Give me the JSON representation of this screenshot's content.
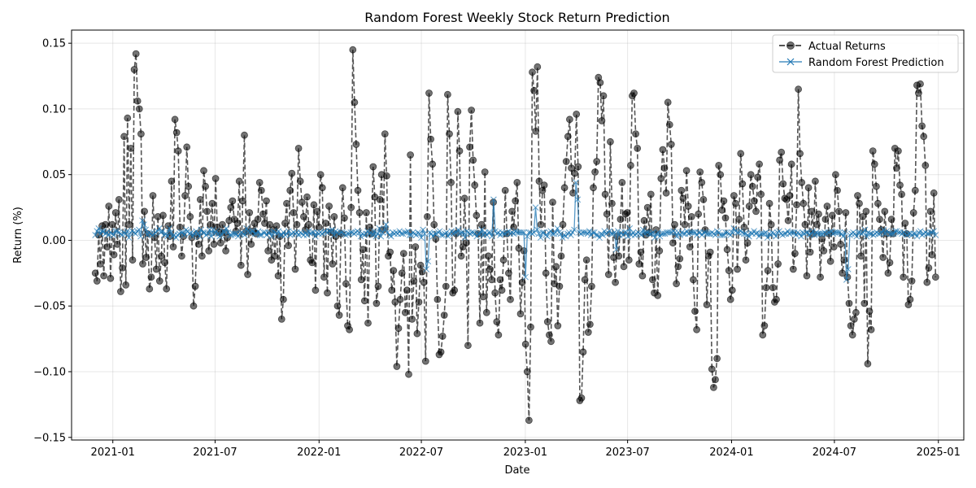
{
  "chart_data": {
    "type": "line",
    "title": "Random Forest Weekly Stock Return Prediction",
    "xlabel": "Date",
    "ylabel": "Return (%)",
    "x_type": "date",
    "xlim": [
      "2020-10-20",
      "2025-02-15"
    ],
    "ylim": [
      -0.152,
      0.16
    ],
    "x_ticks": [
      "2021-01-01",
      "2021-07-01",
      "2022-01-01",
      "2022-07-01",
      "2023-01-01",
      "2023-07-01",
      "2024-01-01",
      "2024-07-01",
      "2025-01-01"
    ],
    "x_tick_labels": [
      "2021-01",
      "2021-07",
      "2022-01",
      "2022-07",
      "2023-01",
      "2023-07",
      "2024-01",
      "2024-07",
      "2025-01"
    ],
    "y_ticks": [
      -0.15,
      -0.1,
      -0.05,
      0.0,
      0.05,
      0.1,
      0.15
    ],
    "y_tick_labels": [
      "−0.15",
      "−0.10",
      "−0.05",
      "0.00",
      "0.05",
      "0.10",
      "0.15"
    ],
    "grid": true,
    "legend_position": "top-right",
    "series": [
      {
        "name": "Actual Returns",
        "color": "#555555",
        "style": "dashed",
        "marker": "circle",
        "sampling": "daily",
        "start": "2020-12-01",
        "end": "2024-12-27",
        "values": [
          -0.025,
          -0.031,
          0.004,
          -0.018,
          0.011,
          -0.027,
          0.012,
          -0.005,
          0.026,
          -0.029,
          0.012,
          -0.011,
          0.021,
          -0.003,
          0.031,
          -0.039,
          -0.021,
          0.079,
          -0.034,
          0.093,
          0.012,
          0.07,
          -0.015,
          0.13,
          0.142,
          0.106,
          0.1,
          0.081,
          -0.018,
          0.022,
          -0.013,
          0.005,
          -0.037,
          -0.028,
          0.034,
          0.002,
          -0.022,
          0.018,
          -0.031,
          -0.012,
          0.019,
          -0.017,
          -0.037,
          0.011,
          0.003,
          0.045,
          -0.005,
          0.092,
          0.082,
          0.068,
          0.01,
          -0.012,
          0.003,
          0.034,
          0.071,
          0.041,
          0.018,
          0.002,
          -0.05,
          -0.035,
          0.005,
          -0.003,
          0.031,
          -0.012,
          0.053,
          0.041,
          0.022,
          -0.008,
          0.012,
          0.028,
          -0.003,
          0.047,
          0.01,
          0.006,
          -0.002,
          0.012,
          0.006,
          -0.008,
          0.002,
          0.015,
          0.025,
          0.03,
          0.016,
          0.007,
          0.013,
          0.045,
          -0.019,
          0.03,
          0.08,
          0.007,
          -0.026,
          0.021,
          -0.003,
          0.007,
          0.013,
          0.005,
          0.016,
          0.044,
          0.038,
          0.02,
          0.013,
          0.03,
          -0.008,
          0.012,
          -0.015,
          0.008,
          -0.012,
          0.011,
          -0.027,
          0.003,
          -0.06,
          -0.045,
          0.013,
          0.028,
          -0.004,
          0.038,
          0.051,
          0.021,
          -0.022,
          0.012,
          0.07,
          0.045,
          0.029,
          0.018,
          0.008,
          0.033,
          0.012,
          -0.015,
          -0.017,
          0.027,
          -0.038,
          0.022,
          0.01,
          0.05,
          0.04,
          -0.028,
          0.013,
          -0.04,
          0.026,
          0.006,
          -0.018,
          0.018,
          0.003,
          -0.05,
          -0.057,
          0.005,
          0.04,
          0.017,
          -0.033,
          -0.065,
          -0.068,
          0.025,
          0.145,
          0.105,
          0.073,
          0.038,
          0.021,
          -0.03,
          -0.007,
          -0.046,
          0.021,
          -0.063,
          0.01,
          0.005,
          0.056,
          0.033,
          -0.048,
          -0.035,
          0.031,
          0.05,
          0.008,
          0.081,
          0.049,
          -0.012,
          -0.009,
          -0.038,
          -0.023,
          -0.047,
          -0.096,
          -0.067,
          -0.045,
          -0.025,
          -0.01,
          -0.055,
          -0.038,
          -0.102,
          0.065,
          -0.06,
          -0.031,
          -0.005,
          -0.071,
          -0.047,
          -0.019,
          -0.024,
          -0.032,
          -0.092,
          0.018,
          0.112,
          0.077,
          0.058,
          0.012,
          0.001,
          -0.045,
          -0.087,
          -0.085,
          -0.073,
          -0.057,
          -0.035,
          0.111,
          0.081,
          0.044,
          -0.04,
          -0.038,
          0.005,
          0.098,
          0.068,
          -0.012,
          -0.005,
          0.032,
          -0.002,
          -0.08,
          0.071,
          0.099,
          0.061,
          0.042,
          0.019,
          0.005,
          -0.063,
          0.012,
          -0.043,
          0.052,
          -0.055,
          -0.012,
          -0.022,
          -0.03,
          0.029,
          -0.04,
          -0.062,
          -0.072,
          -0.03,
          -0.038,
          -0.015,
          0.038,
          0.005,
          -0.025,
          -0.045,
          0.022,
          0.01,
          0.03,
          0.044,
          -0.006,
          -0.056,
          -0.032,
          -0.008,
          -0.079,
          -0.1,
          -0.137,
          -0.066,
          0.128,
          0.114,
          0.083,
          0.132,
          0.045,
          0.012,
          0.038,
          0.042,
          -0.025,
          -0.062,
          -0.072,
          -0.077,
          0.029,
          -0.033,
          -0.02,
          -0.065,
          -0.035,
          -0.012,
          0.012,
          0.04,
          0.06,
          0.079,
          0.092,
          0.055,
          0.036,
          0.051,
          0.096,
          0.056,
          -0.122,
          -0.12,
          -0.085,
          -0.03,
          -0.015,
          -0.07,
          -0.064,
          -0.035,
          0.04,
          0.052,
          0.06,
          0.124,
          0.12,
          0.091,
          0.11,
          0.035,
          0.02,
          -0.026,
          0.075,
          0.028,
          -0.013,
          -0.032,
          0.003,
          -0.012,
          0.016,
          0.044,
          -0.02,
          0.02,
          0.021,
          -0.015,
          0.057,
          0.11,
          0.112,
          0.081,
          0.07,
          -0.018,
          -0.009,
          -0.027,
          0.015,
          0.004,
          0.025,
          0.006,
          0.035,
          -0.03,
          -0.04,
          0.008,
          -0.042,
          -0.008,
          0.047,
          0.069,
          0.055,
          0.036,
          0.105,
          0.088,
          0.073,
          -0.002,
          0.012,
          -0.033,
          -0.02,
          -0.014,
          0.038,
          0.032,
          0.012,
          0.053,
          0.026,
          -0.005,
          0.018,
          -0.03,
          -0.054,
          -0.068,
          0.02,
          0.052,
          0.044,
          0.031,
          0.008,
          -0.049,
          -0.012,
          -0.009,
          -0.098,
          -0.112,
          -0.106,
          -0.09,
          0.057,
          0.05,
          0.023,
          0.03,
          0.017,
          -0.007,
          -0.023,
          -0.045,
          -0.038,
          0.034,
          0.028,
          -0.022,
          0.016,
          0.066,
          0.043,
          0.01,
          -0.015,
          -0.002,
          0.026,
          0.05,
          0.041,
          0.03,
          0.022,
          0.048,
          0.058,
          0.035,
          -0.072,
          -0.065,
          -0.036,
          -0.023,
          0.028,
          0.012,
          -0.036,
          -0.047,
          -0.045,
          -0.018,
          0.061,
          0.067,
          0.043,
          0.032,
          0.031,
          0.015,
          0.034,
          0.058,
          -0.022,
          -0.01,
          0.027,
          0.115,
          0.066,
          0.044,
          0.028,
          0.012,
          -0.027,
          0.04,
          -0.009,
          0.022,
          0.005,
          0.045,
          0.012,
          0.02,
          -0.028,
          0.001,
          -0.008,
          0.016,
          0.026,
          0.005,
          -0.016,
          0.019,
          -0.005,
          0.05,
          0.038,
          0.022,
          -0.003,
          -0.025,
          -0.015,
          0.021,
          -0.028,
          -0.048,
          -0.065,
          -0.072,
          -0.06,
          -0.055,
          0.034,
          0.028,
          -0.012,
          0.018,
          -0.048,
          0.022,
          -0.094,
          -0.054,
          -0.068,
          0.068,
          0.058,
          0.041,
          0.028,
          0.016,
          0.008,
          -0.013,
          0.022,
          0.005,
          -0.025,
          -0.017,
          0.016,
          0.005,
          0.07,
          0.055,
          0.068,
          0.042,
          0.035,
          -0.028,
          0.013,
          0.005,
          -0.049,
          -0.045,
          -0.031,
          0.021,
          0.038,
          0.118,
          0.112,
          0.119,
          0.087,
          0.079,
          0.057,
          -0.032,
          -0.021,
          0.022,
          -0.011,
          0.036,
          -0.028
        ]
      },
      {
        "name": "Random Forest Prediction",
        "color": "#1f77b4",
        "style": "solid",
        "marker": "x",
        "sampling": "daily",
        "start": "2020-12-01",
        "end": "2024-12-27",
        "values": [
          0.004,
          0.007,
          0.009,
          0.005,
          0.007,
          0.007,
          0.005,
          0.006,
          0.004,
          0.006,
          0.005,
          0.004,
          0.007,
          0.007,
          0.006,
          0.005,
          0.004,
          0.006,
          0.005,
          0.007,
          0.002,
          0.006,
          0.007,
          0.006,
          0.005,
          0.007,
          0.008,
          0.003,
          0.015,
          0.012,
          0.008,
          0.004,
          0.006,
          0.005,
          0.004,
          0.005,
          0.006,
          0.007,
          0.009,
          0.006,
          0.007,
          0.004,
          0.005,
          0.003,
          0.009,
          0.006,
          0.003,
          0.004,
          0.002,
          0.004,
          0.005,
          0.006,
          0.006,
          0.004,
          0.008,
          0.007,
          0.005,
          0.006,
          0.003,
          0.005,
          0.007,
          0.005,
          0.003,
          0.008,
          0.006,
          0.006,
          0.004,
          0.005,
          0.008,
          0.003,
          0.008,
          0.005,
          0.007,
          0.005,
          0.003,
          0.004,
          0.007,
          0.006,
          0.009,
          0.006,
          0.004,
          0.004,
          0.005,
          0.005,
          0.005,
          0.003,
          0.005,
          0.006,
          0.005,
          0.004,
          0.009,
          0.007,
          0.006,
          0.007,
          0.007,
          0.005,
          0.005,
          0.007,
          0.004,
          0.004,
          0.006,
          0.006,
          0.004,
          0.006,
          0.006,
          0.003,
          0.007,
          0.006,
          0.005,
          0.007,
          0.004,
          0.004,
          0.006,
          0.004,
          0.005,
          0.007,
          0.004,
          0.005,
          0.006,
          0.005,
          0.006,
          0.004,
          0.006,
          0.005,
          0.004,
          0.006,
          0.004,
          0.007,
          0.005,
          0.006,
          0.006,
          0.003,
          0.006,
          0.005,
          0.006,
          0.005,
          0.006,
          0.007,
          0.006,
          0.007,
          0.007,
          0.008,
          0.004,
          0.007,
          0.006,
          0.005,
          0.006,
          0.006,
          0.005,
          0.004,
          0.005,
          0.005,
          0.006,
          0.006,
          0.005,
          0.006,
          0.007,
          0.006,
          0.003,
          0.005,
          0.004,
          0.005,
          0.007,
          0.005,
          0.006,
          0.004,
          0.007,
          0.003,
          0.005,
          0.009,
          0.003,
          0.006,
          0.008,
          0.012,
          0.006,
          0.004,
          0.003,
          0.006,
          0.005,
          0.006,
          0.005,
          0.007,
          0.005,
          0.005,
          0.006,
          0.006,
          0.007,
          0.004,
          0.004,
          0.006,
          0.005,
          0.004,
          0.006,
          0.005,
          0.002,
          0.008,
          0.005,
          -0.022,
          -0.016,
          0.006,
          0.005,
          0.003,
          0.005,
          0.005,
          0.006,
          0.007,
          0.004,
          0.004,
          0.005,
          0.006,
          0.003,
          0.005,
          0.007,
          0.005,
          0.006,
          0.006,
          0.008,
          0.005,
          0.006,
          0.006,
          0.002,
          0.007,
          0.006,
          0.005,
          0.006,
          0.006,
          0.005,
          0.003,
          0.005,
          0.005,
          0.008,
          0.004,
          0.006,
          0.004,
          0.006,
          0.006,
          0.003,
          0.031,
          0.007,
          0.005,
          0.006,
          0.004,
          0.006,
          0.005,
          0.005,
          0.006,
          0.007,
          0.005,
          0.006,
          0.005,
          0.007,
          0.006,
          0.006,
          0.006,
          0.006,
          0.006,
          -0.028,
          0.003,
          0.006,
          0.006,
          0.005,
          0.006,
          0.025,
          0.008,
          0.005,
          0.002,
          0.006,
          0.006,
          0.004,
          0.003,
          0.006,
          0.007,
          0.005,
          0.005,
          0.006,
          0.009,
          0.006,
          0.005,
          0.002,
          0.004,
          0.003,
          0.005,
          0.006,
          0.004,
          0.006,
          0.008,
          0.044,
          0.031,
          0.006,
          0.005,
          0.006,
          0.006,
          0.006,
          0.005,
          0.007,
          0.004,
          0.006,
          0.006,
          0.004,
          0.004,
          0.002,
          0.005,
          0.004,
          0.007,
          0.005,
          0.006,
          0.007,
          0.005,
          0.005,
          0.006,
          -0.007,
          0.007,
          0.004,
          0.006,
          0.004,
          0.006,
          0.006,
          0.003,
          0.009,
          0.004,
          0.006,
          0.004,
          0.005,
          0.006,
          0.005,
          0.004,
          0.008,
          0.005,
          0.006,
          0.006,
          0.005,
          0.005,
          0.006,
          0.002,
          0.005,
          0.006,
          0.003,
          0.005,
          0.005,
          0.005,
          0.006,
          0.006,
          0.006,
          0.006,
          0.007,
          0.006,
          0.003,
          0.006,
          0.004,
          0.006,
          0.005,
          0.005,
          0.007,
          0.005,
          0.006,
          0.006,
          0.006,
          0.006,
          0.004,
          0.006,
          0.006,
          0.004,
          0.006,
          0.006,
          0.005,
          0.005,
          0.005,
          0.006,
          0.005,
          0.004,
          0.007,
          0.006,
          0.004,
          0.004,
          0.004,
          0.006,
          0.006,
          0.005,
          0.004,
          0.006,
          0.009,
          0.007,
          0.006,
          0.006,
          0.007,
          0.006,
          0.005,
          0.005,
          0.004,
          0.003,
          0.006,
          0.005,
          0.007,
          0.005,
          0.006,
          0.003,
          0.005,
          0.005,
          0.005,
          0.006,
          0.002,
          0.005,
          0.004,
          0.006,
          0.005,
          0.003,
          0.006,
          0.007,
          0.005,
          0.004,
          0.005,
          0.005,
          0.007,
          0.005,
          0.006,
          0.006,
          0.006,
          0.004,
          0.006,
          0.005,
          0.003,
          0.006,
          0.005,
          0.006,
          0.006,
          0.004,
          0.005,
          0.007,
          0.004,
          0.006,
          0.005,
          0.005,
          0.005,
          0.005,
          0.006,
          0.005,
          0.006,
          0.006,
          0.007,
          0.005,
          0.006,
          0.006,
          0.006,
          0.006,
          0.005,
          0.003,
          0.006,
          -0.03,
          -0.022,
          0.004,
          0.005,
          0.006,
          0.005,
          0.003,
          0.006,
          0.006,
          0.005,
          0.006,
          0.008,
          0.003,
          0.006,
          0.005,
          0.005,
          0.004,
          0.005,
          0.006,
          0.005,
          0.005,
          0.006,
          0.008,
          0.005,
          0.007,
          0.006,
          0.005,
          0.005,
          0.005,
          0.007,
          0.007,
          0.006,
          0.006,
          0.005,
          0.006,
          0.005,
          0.004,
          0.005,
          0.005,
          0.004,
          0.005,
          0.005,
          0.003,
          0.006,
          0.007,
          0.004,
          0.005,
          0.006,
          0.005,
          0.005,
          0.006,
          0.006,
          0.007,
          0.004
        ]
      }
    ]
  }
}
